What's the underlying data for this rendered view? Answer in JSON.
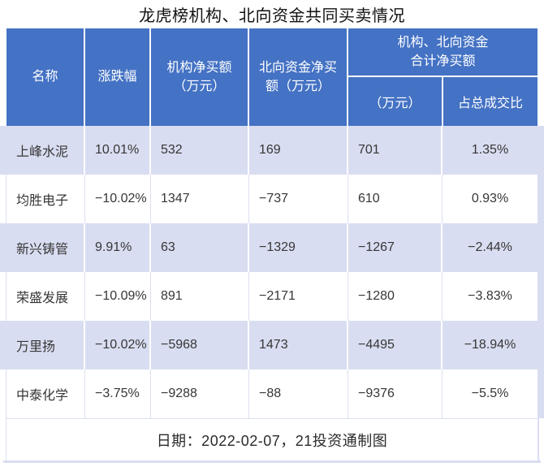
{
  "title": "龙虎榜机构、北向资金共同买卖情况",
  "header": {
    "col_name": "名称",
    "col_change": "涨跌幅",
    "col_inst": "机构净买额\n（万元）",
    "col_north": "北向资金净买\n额（万元）",
    "group": "机构、北向资金\n合计净买额",
    "sub_amount": "（万元）",
    "sub_ratio": "占总成交比"
  },
  "footer": {
    "note": "日期：2022-02-07，21投资通制图"
  },
  "colors": {
    "header_bg": "#4472C4",
    "stripe_bg": "#D9DDF1",
    "grid_line_light": "#DCDFF2",
    "header_text": "#FFFFFF",
    "body_text": "#363636"
  },
  "chart_data": {
    "type": "table",
    "title": "龙虎榜机构、北向资金共同买卖情况",
    "columns": [
      "名称",
      "涨跌幅",
      "机构净买额（万元）",
      "北向资金净买额（万元）",
      "机构、北向资金合计净买额（万元）",
      "机构、北向资金合计净买额占总成交比"
    ],
    "rows": [
      [
        "上峰水泥",
        "10.01%",
        "532",
        "169",
        "701",
        "1.35%"
      ],
      [
        "均胜电子",
        "−10.02%",
        "1347",
        "−737",
        "610",
        "0.93%"
      ],
      [
        "新兴铸管",
        "9.91%",
        "63",
        "−1329",
        "−1267",
        "−2.44%"
      ],
      [
        "荣盛发展",
        "−10.09%",
        "891",
        "−2171",
        "−1280",
        "−3.83%"
      ],
      [
        "万里扬",
        "−10.02%",
        "−5968",
        "1473",
        "−4495",
        "−18.94%"
      ],
      [
        "中泰化学",
        "−3.75%",
        "−9288",
        "−88",
        "−9376",
        "−5.5%"
      ]
    ],
    "note": "日期：2022-02-07，21投资通制图",
    "layout": {
      "stripe_rows": [
        0,
        2,
        4
      ],
      "header_rows": 2,
      "grid": true
    }
  }
}
